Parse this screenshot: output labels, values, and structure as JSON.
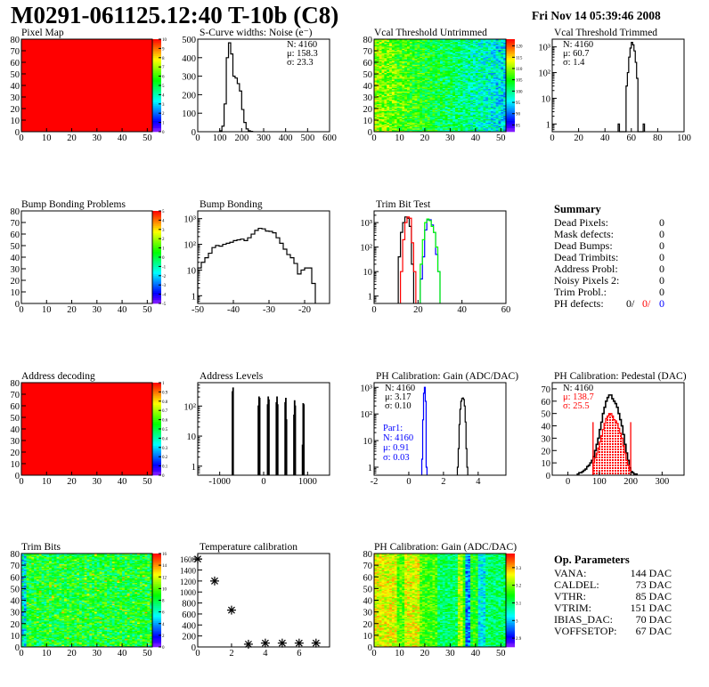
{
  "header": {
    "title": "M0291-061125.12:40 T-10b (C8)",
    "date": "Fri Nov 14 05:39:46 2008"
  },
  "summary": {
    "title": "Summary",
    "rows": [
      {
        "label": "Dead Pixels:",
        "value": "0"
      },
      {
        "label": "Mask defects:",
        "value": "0"
      },
      {
        "label": "Dead Bumps:",
        "value": "0"
      },
      {
        "label": "Dead Trimbits:",
        "value": "0"
      },
      {
        "label": "Address Probl:",
        "value": "0"
      },
      {
        "label": "Noisy Pixels 2:",
        "value": "0"
      },
      {
        "label": "Trim Probl.:",
        "value": "0"
      }
    ],
    "ph_defects": {
      "label": "PH defects:",
      "v1": "0/",
      "v2": "0/",
      "v3": "0",
      "c1": "#000000",
      "c2": "#ff0000",
      "c3": "#0000ff"
    }
  },
  "op_params": {
    "title": "Op. Parameters",
    "rows": [
      {
        "label": "VANA:",
        "value": "144 DAC"
      },
      {
        "label": "CALDEL:",
        "value": "73 DAC"
      },
      {
        "label": "VTHR:",
        "value": "85 DAC"
      },
      {
        "label": "VTRIM:",
        "value": "151 DAC"
      },
      {
        "label": "IBIAS_DAC:",
        "value": "70 DAC"
      },
      {
        "label": "VOFFSETOP:",
        "value": "67 DAC"
      }
    ]
  },
  "chart_data": [
    {
      "title": "Pixel Map",
      "type": "heatmap",
      "xlim": [
        0,
        52
      ],
      "ylim": [
        0,
        80
      ],
      "zlim": [
        0,
        10
      ],
      "fill": "constant",
      "constant": 10,
      "xticks": [
        "0",
        "10",
        "20",
        "30",
        "40",
        "50"
      ],
      "yticks": [
        "0",
        "10",
        "20",
        "30",
        "40",
        "50",
        "60",
        "70",
        "80"
      ],
      "zticks": [
        "0",
        "1",
        "2",
        "3",
        "4",
        "5",
        "6",
        "7",
        "8",
        "9",
        "10"
      ]
    },
    {
      "title": "S-Curve widths: Noise (e⁻)",
      "type": "bar",
      "xlim": [
        0,
        600
      ],
      "ylim": [
        0,
        500
      ],
      "log": false,
      "xticks": [
        "0",
        "100",
        "200",
        "300",
        "400",
        "500",
        "600"
      ],
      "yticks": [
        "0",
        "100",
        "200",
        "300",
        "400",
        "500"
      ],
      "series": [
        {
          "color": "#000000",
          "x0": 100,
          "width": 10,
          "values": [
            5,
            30,
            150,
            400,
            480,
            420,
            300,
            290,
            260,
            220,
            120,
            50,
            15,
            5,
            2
          ]
        }
      ],
      "stats": [
        {
          "text": "N: 4160",
          "color": "#000000"
        },
        {
          "text": "μ: 158.3",
          "color": "#000000"
        },
        {
          "text": "σ: 23.3",
          "color": "#000000"
        }
      ]
    },
    {
      "title": "Vcal Threshold Untrimmed",
      "type": "heatmap",
      "xlim": [
        0,
        52
      ],
      "ylim": [
        0,
        80
      ],
      "zlim": [
        82,
        123
      ],
      "fill": "gradient-left-to-right",
      "range": [
        110,
        95
      ],
      "xticks": [
        "0",
        "10",
        "20",
        "30",
        "40",
        "50"
      ],
      "yticks": [
        "0",
        "10",
        "20",
        "30",
        "40",
        "50",
        "60",
        "70",
        "80"
      ],
      "zticks": [
        "85",
        "90",
        "95",
        "100",
        "105",
        "110",
        "115",
        "120"
      ]
    },
    {
      "title": "Vcal Threshold Trimmed",
      "type": "bar",
      "xlim": [
        0,
        100
      ],
      "ylim": [
        0.5,
        2000
      ],
      "log": true,
      "xticks": [
        "0",
        "20",
        "40",
        "60",
        "80",
        "100"
      ],
      "yticks": [
        "1",
        "10",
        "10²",
        "10³"
      ],
      "series": [
        {
          "color": "#000000",
          "x0": 50,
          "width": 1,
          "values": [
            1,
            0,
            0,
            0,
            0,
            0,
            30,
            100,
            400,
            900,
            1500,
            1200,
            700,
            250,
            60,
            0,
            0,
            0,
            0,
            1
          ]
        }
      ],
      "stats": [
        {
          "text": "N: 4160",
          "color": "#000000"
        },
        {
          "text": "μ: 60.7",
          "color": "#000000"
        },
        {
          "text": "σ:  1.4",
          "color": "#000000"
        }
      ]
    },
    {
      "title": "Bump Bonding Problems",
      "type": "heatmap",
      "xlim": [
        0,
        52
      ],
      "ylim": [
        0,
        80
      ],
      "zlim": [
        -5,
        5
      ],
      "fill": "empty",
      "xticks": [
        "0",
        "10",
        "20",
        "30",
        "40",
        "50"
      ],
      "yticks": [
        "0",
        "10",
        "20",
        "30",
        "40",
        "50",
        "60",
        "70",
        "80"
      ],
      "zticks": [
        "-5",
        "-4",
        "-3",
        "-2",
        "-1",
        "0",
        "1",
        "2",
        "3",
        "4",
        "5"
      ]
    },
    {
      "title": "Bump Bonding",
      "type": "bar",
      "xlim": [
        -50,
        -13
      ],
      "ylim": [
        0.5,
        2000
      ],
      "log": true,
      "xticks": [
        "-50",
        "-40",
        "-30",
        "-20"
      ],
      "xtickvals": [
        -50,
        -40,
        -30,
        -20
      ],
      "yticks": [
        "1",
        "10",
        "10²",
        "10³"
      ],
      "series": [
        {
          "color": "#000000",
          "x0": -50,
          "width": 1,
          "values": [
            12,
            20,
            30,
            45,
            75,
            90,
            85,
            100,
            110,
            120,
            140,
            150,
            160,
            140,
            180,
            250,
            350,
            420,
            400,
            330,
            320,
            280,
            180,
            110,
            65,
            40,
            30,
            18,
            7,
            10,
            12,
            12,
            3
          ]
        }
      ]
    },
    {
      "title": "Trim Bit Test",
      "type": "bar",
      "xlim": [
        0,
        60
      ],
      "ylim": [
        0.5,
        3000
      ],
      "log": true,
      "xticks": [
        "0",
        "20",
        "40",
        "60"
      ],
      "xtickvals": [
        0,
        20,
        40,
        60
      ],
      "yticks": [
        "1",
        "10",
        "10²",
        "10³"
      ],
      "series": [
        {
          "color": "#000000",
          "x0": 11,
          "width": 1,
          "values": [
            40,
            400,
            1000,
            1700,
            1500,
            700,
            20
          ]
        },
        {
          "color": "#ff0000",
          "x0": 12,
          "width": 1,
          "values": [
            10,
            200,
            1000,
            1700,
            1500,
            150,
            10
          ]
        },
        {
          "color": "#0000ff",
          "x0": 21,
          "width": 1,
          "values": [
            5,
            40,
            500,
            1300,
            1300,
            800,
            400,
            50,
            10
          ]
        },
        {
          "color": "#00ff00",
          "x0": 21,
          "width": 1,
          "values": [
            20,
            200,
            1000,
            1400,
            1200,
            700,
            400,
            100,
            10
          ]
        }
      ]
    },
    {
      "type": "text"
    },
    {
      "title": "Address decoding",
      "type": "heatmap",
      "xlim": [
        0,
        52
      ],
      "ylim": [
        0,
        80
      ],
      "zlim": [
        0,
        1
      ],
      "fill": "constant",
      "constant": 1,
      "xticks": [
        "0",
        "10",
        "20",
        "30",
        "40",
        "50"
      ],
      "yticks": [
        "0",
        "10",
        "20",
        "30",
        "40",
        "50",
        "60",
        "70",
        "80"
      ],
      "zticks": [
        "0",
        "0.1",
        "0.2",
        "0.3",
        "0.4",
        "0.5",
        "0.6",
        "0.7",
        "0.8",
        "0.9",
        "1"
      ]
    },
    {
      "title": "Address Levels",
      "type": "spikes",
      "xlim": [
        -1500,
        1500
      ],
      "ylim": [
        0.5,
        600
      ],
      "log": true,
      "xticks": [
        "-1000",
        "0",
        "1000"
      ],
      "xtickvals": [
        -1000,
        0,
        1000
      ],
      "yticks": [
        "1",
        "10",
        "10²"
      ],
      "spikes": [
        [
          -710,
          300
        ],
        [
          -695,
          400
        ],
        [
          -120,
          100
        ],
        [
          -105,
          200
        ],
        [
          -90,
          180
        ],
        [
          90,
          110
        ],
        [
          105,
          200
        ],
        [
          120,
          160
        ],
        [
          290,
          130
        ],
        [
          305,
          200
        ],
        [
          320,
          110
        ],
        [
          490,
          130
        ],
        [
          505,
          180
        ],
        [
          520,
          35
        ],
        [
          690,
          50
        ],
        [
          705,
          150
        ],
        [
          720,
          100
        ],
        [
          885,
          5
        ],
        [
          900,
          120
        ],
        [
          915,
          110
        ]
      ]
    },
    {
      "title": "PH Calibration: Gain (ADC/DAC)",
      "type": "bar",
      "xlim": [
        -2,
        5.6
      ],
      "ylim": [
        0.5,
        1500
      ],
      "log": true,
      "xticks": [
        "-2",
        "0",
        "2",
        "4"
      ],
      "xtickvals": [
        -2,
        0,
        2,
        4
      ],
      "yticks": [
        "1",
        "10",
        "10²",
        "10³"
      ],
      "series": [
        {
          "color": "#0000ff",
          "x0": 0.75,
          "width": 0.05,
          "values": [
            2,
            60,
            600,
            1000,
            300,
            1
          ]
        },
        {
          "color": "#000000",
          "x0": 2.8,
          "width": 0.05,
          "values": [
            1,
            5,
            40,
            150,
            300,
            380,
            400,
            350,
            200,
            50,
            5,
            1
          ]
        }
      ],
      "stats": [
        {
          "text": "N: 4160",
          "color": "#000000"
        },
        {
          "text": "μ: 3.17",
          "color": "#000000"
        },
        {
          "text": "σ: 0.10",
          "color": "#000000"
        }
      ],
      "stats2": [
        {
          "text": "Par1:",
          "color": "#0000ff"
        },
        {
          "text": "N: 4160",
          "color": "#0000ff"
        },
        {
          "text": "μ: 0.91",
          "color": "#0000ff"
        },
        {
          "text": "σ: 0.03",
          "color": "#0000ff"
        }
      ]
    },
    {
      "title": "PH Calibration: Pedestal (DAC)",
      "type": "bar",
      "xlim": [
        -50,
        370
      ],
      "ylim": [
        0,
        75
      ],
      "log": false,
      "xticks": [
        "0",
        "100",
        "200",
        "300"
      ],
      "xtickvals": [
        0,
        100,
        200,
        300
      ],
      "yticks": [
        "0",
        "10",
        "20",
        "30",
        "40",
        "50",
        "60",
        "70"
      ],
      "series": [
        {
          "color": "#000000",
          "x0": 30,
          "width": 5,
          "values": [
            1,
            2,
            2,
            3,
            4,
            5,
            7,
            8,
            10,
            12,
            15,
            20,
            25,
            30,
            37,
            43,
            50,
            55,
            60,
            63,
            65,
            65,
            62,
            60,
            58,
            55,
            50,
            45,
            40,
            33,
            25,
            18,
            12,
            6,
            3,
            2,
            1,
            1
          ]
        },
        {
          "color": "#ff0000",
          "x0": 80,
          "width": 5,
          "filled": true,
          "values": [
            10,
            14,
            18,
            22,
            27,
            32,
            37,
            42,
            46,
            48,
            50,
            50,
            48,
            45,
            44,
            42,
            38,
            34,
            30,
            24,
            18,
            12,
            8,
            4
          ]
        }
      ],
      "cuts": {
        "values": [
          80,
          200
        ],
        "level": 43,
        "color": "#ff0000"
      },
      "stats": [
        {
          "text": "N: 4160",
          "color": "#000000"
        },
        {
          "text": "μ: 138.7",
          "color": "#ff0000"
        },
        {
          "text": "σ: 25.5",
          "color": "#ff0000"
        }
      ]
    },
    {
      "title": "Trim Bits",
      "type": "heatmap",
      "xlim": [
        0,
        52
      ],
      "ylim": [
        0,
        80
      ],
      "zlim": [
        0,
        16
      ],
      "fill": "noise",
      "range": [
        6,
        11
      ],
      "xticks": [
        "0",
        "10",
        "20",
        "30",
        "40",
        "50"
      ],
      "yticks": [
        "0",
        "10",
        "20",
        "30",
        "40",
        "50",
        "60",
        "70",
        "80"
      ],
      "zticks": [
        "0",
        "2",
        "4",
        "6",
        "8",
        "10",
        "12",
        "14",
        "16"
      ]
    },
    {
      "title": "Temperature calibration",
      "type": "scatter",
      "xlim": [
        0,
        7.8
      ],
      "ylim": [
        0,
        1700
      ],
      "xticks": [
        "0",
        "2",
        "4",
        "6"
      ],
      "xtickvals": [
        0,
        2,
        4,
        6
      ],
      "yticks": [
        "0",
        "200",
        "400",
        "600",
        "800",
        "1000",
        "1200",
        "1400",
        "1600"
      ],
      "points": [
        [
          0,
          1600
        ],
        [
          1,
          1200
        ],
        [
          2,
          670
        ],
        [
          3,
          50
        ],
        [
          4,
          70
        ],
        [
          5,
          70
        ],
        [
          6,
          70
        ],
        [
          7,
          70
        ]
      ]
    },
    {
      "title": "PH Calibration: Gain (ADC/DAC)",
      "type": "heatmap",
      "xlim": [
        0,
        52
      ],
      "ylim": [
        0,
        80
      ],
      "zlim": [
        2.85,
        3.38
      ],
      "fill": "columns",
      "xticks": [
        "0",
        "10",
        "20",
        "30",
        "40",
        "50"
      ],
      "yticks": [
        "0",
        "10",
        "20",
        "30",
        "40",
        "50",
        "60",
        "70",
        "80"
      ],
      "zticks": [
        "2.9",
        "3",
        "3.1",
        "3.2",
        "3.3"
      ],
      "ztickvals": [
        2.9,
        3.0,
        3.1,
        3.2,
        3.3
      ]
    },
    {
      "type": "text"
    }
  ]
}
